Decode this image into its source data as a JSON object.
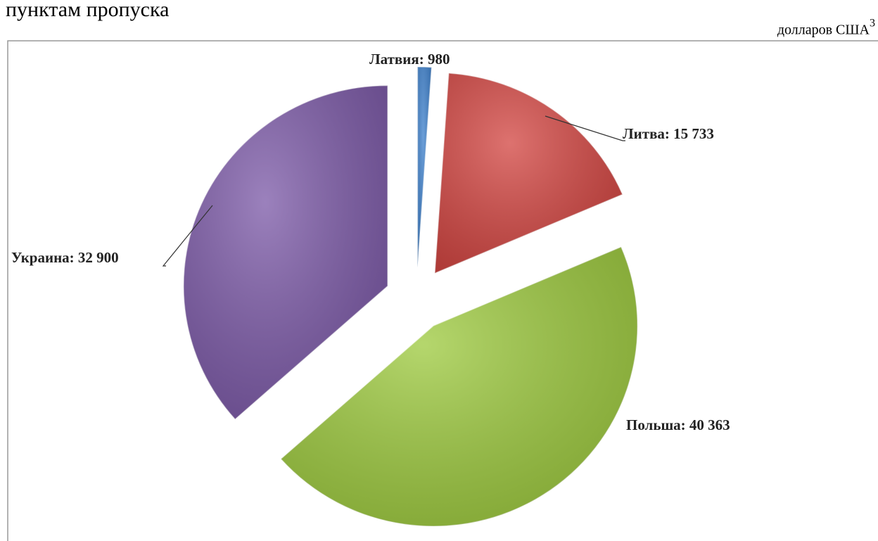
{
  "chart_data": {
    "type": "pie",
    "title": "пунктам пропуска",
    "unit": "долларов США",
    "unit_note": "3",
    "values": [
      980,
      15733,
      40363,
      32900
    ],
    "value_labels": [
      "Латвия: 980",
      "Литва: 15 733",
      "Польша: 40 363",
      "Украина: 32 900"
    ],
    "colors": [
      "#3b7fcc",
      "#d2433f",
      "#9cc93c",
      "#7a57a6"
    ],
    "exploded": true,
    "start_angle": 0,
    "direction": "clockwise"
  }
}
